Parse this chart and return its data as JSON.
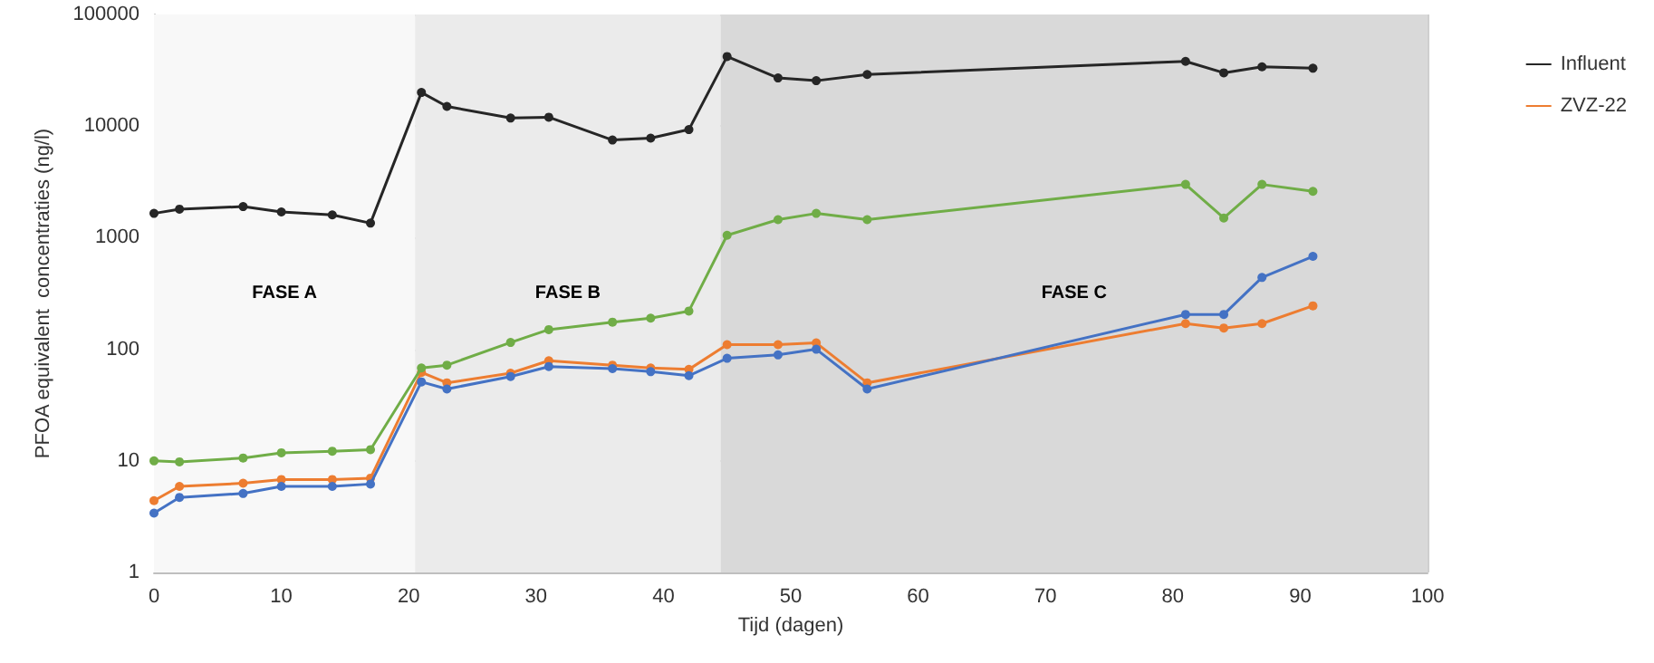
{
  "chart_data": {
    "type": "line",
    "xlabel": "Tijd (dagen)",
    "ylabel": "PFOA equivalent  concentraties (ng/l)",
    "x": [
      0,
      2,
      7,
      10,
      14,
      17,
      21,
      23,
      28,
      31,
      36,
      39,
      42,
      45,
      49,
      52,
      56,
      81,
      84,
      87,
      91
    ],
    "series": [
      {
        "name": "Influent",
        "color": "#262626",
        "values": [
          1650,
          1800,
          1900,
          1700,
          1600,
          1350,
          20000,
          15000,
          11800,
          12000,
          7500,
          7800,
          9300,
          42000,
          27000,
          25500,
          29000,
          38000,
          30000,
          34000,
          33000
        ]
      },
      {
        "color": "#70ad47",
        "values": [
          10,
          9.8,
          10.6,
          11.8,
          12.2,
          12.6,
          68,
          72,
          115,
          150,
          175,
          190,
          220,
          1050,
          1450,
          1650,
          1450,
          3000,
          1500,
          3000,
          2600
        ]
      },
      {
        "color": "#4472c4",
        "values": [
          3.4,
          4.7,
          5.1,
          5.9,
          5.9,
          6.2,
          51,
          44,
          57,
          70,
          67,
          63,
          58,
          83,
          89,
          100,
          44,
          205,
          205,
          440,
          680
        ]
      },
      {
        "name": "ZVZ-22",
        "color": "#ed7d31",
        "values": [
          4.4,
          5.9,
          6.3,
          6.8,
          6.8,
          7,
          62,
          50,
          61,
          79,
          72,
          68,
          66,
          110,
          110,
          114,
          50,
          170,
          155,
          170,
          245
        ]
      }
    ],
    "bands": [
      {
        "axis": "x",
        "from": 0,
        "to": 20.5,
        "label": "FASE A",
        "color": "#f8f8f8"
      },
      {
        "axis": "x",
        "from": 20.5,
        "to": 44.5,
        "label": "FASE B",
        "color": "#ebebeb"
      },
      {
        "axis": "x",
        "from": 44.5,
        "to": 100,
        "label": "FASE C",
        "color": "#d9d9d9"
      }
    ],
    "xlim": [
      0,
      100
    ],
    "xticks": [
      0,
      10,
      20,
      30,
      40,
      50,
      60,
      70,
      80,
      90,
      100
    ],
    "ylim": [
      1,
      100000
    ],
    "yticks": [
      1,
      10,
      100,
      1000,
      10000,
      100000
    ],
    "log": true,
    "grid": true,
    "legend": "right",
    "marker": "circle",
    "line_style": "solid"
  }
}
